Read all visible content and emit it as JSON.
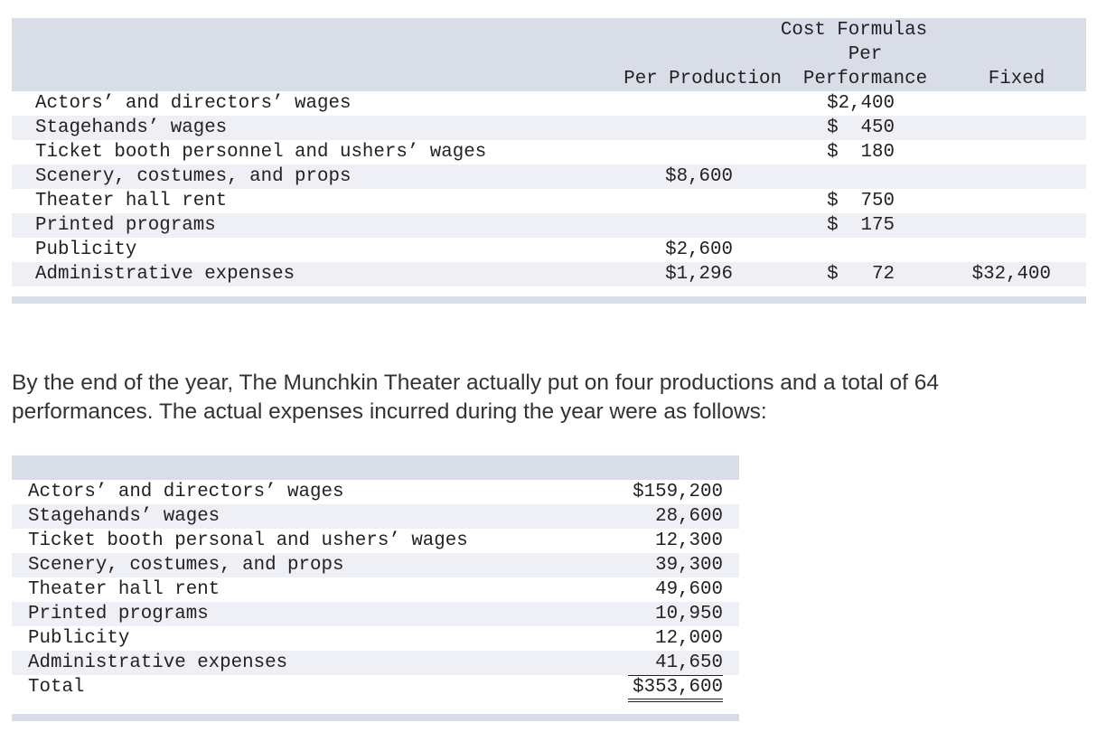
{
  "table1": {
    "header": {
      "group": "Cost Formulas",
      "columns": [
        "Per Production",
        "Per\nPerformance",
        "Fixed"
      ]
    },
    "rows": [
      [
        "Actors’ and directors’ wages",
        null,
        "$2,400",
        null
      ],
      [
        "Stagehands’ wages",
        null,
        "$  450",
        null
      ],
      [
        "Ticket booth personnel and ushers’ wages",
        null,
        "$  180",
        null
      ],
      [
        "Scenery, costumes, and props",
        "$8,600",
        null,
        null
      ],
      [
        "Theater hall rent",
        null,
        "$  750",
        null
      ],
      [
        "Printed programs",
        null,
        "$  175",
        null
      ],
      [
        "Publicity",
        "$2,600",
        null,
        null
      ],
      [
        "Administrative expenses",
        "$1,296",
        "$   72",
        "$32,400"
      ]
    ]
  },
  "paragraph": "By the end of the year, The Munchkin Theater actually put on four productions and a total of 64 performances. The actual expenses incurred during the year were as follows:",
  "table2": {
    "rows": [
      [
        "Actors’ and directors’ wages",
        "$159,200"
      ],
      [
        "Stagehands’ wages",
        "28,600"
      ],
      [
        "Ticket booth personal and ushers’ wages",
        "12,300"
      ],
      [
        "Scenery, costumes, and props",
        "39,300"
      ],
      [
        "Theater hall rent",
        "49,600"
      ],
      [
        "Printed programs",
        "10,950"
      ],
      [
        "Publicity",
        "12,000"
      ],
      [
        "Administrative expenses",
        "41,650"
      ]
    ],
    "total": [
      "Total",
      "$353,600"
    ]
  }
}
